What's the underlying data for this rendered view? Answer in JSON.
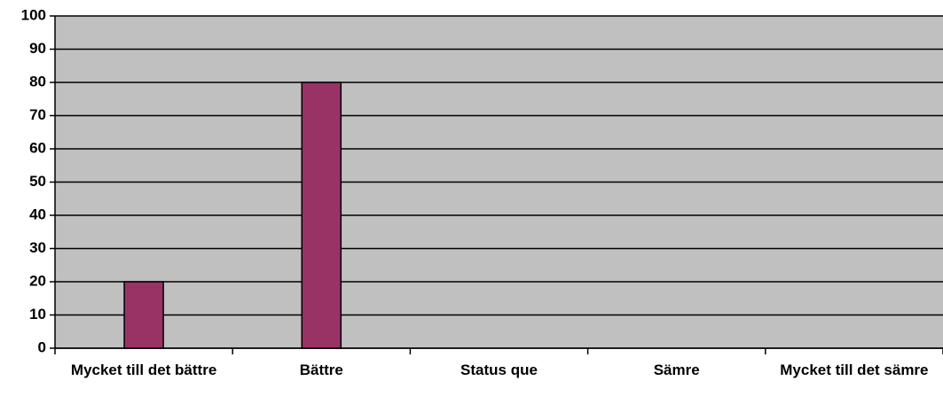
{
  "chart_data": {
    "type": "bar",
    "categories": [
      "Mycket till det bättre",
      "Bättre",
      "Status que",
      "Sämre",
      "Mycket till det sämre"
    ],
    "values": [
      20,
      80,
      0,
      0,
      0
    ],
    "color": "#993366",
    "ylim": [
      0,
      100
    ],
    "yticks": [
      0,
      10,
      20,
      30,
      40,
      50,
      60,
      70,
      80,
      90,
      100
    ],
    "grid": true
  }
}
